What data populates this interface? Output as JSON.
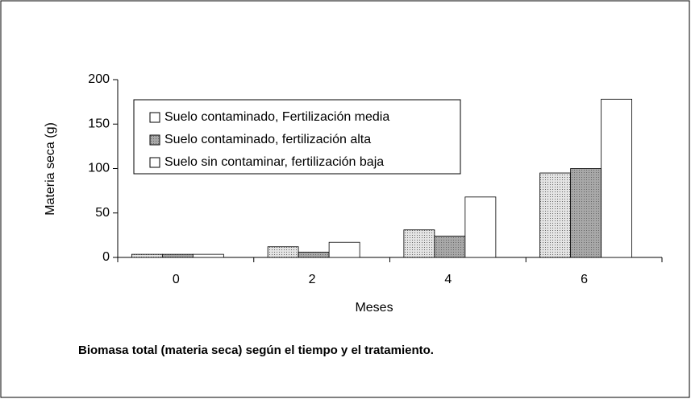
{
  "chart_data": {
    "type": "bar",
    "title": "Biomasa total (materia seca) según el tiempo y el tratamiento.",
    "x_label": "Meses",
    "y_label": "Materia seca (g)",
    "categories": [
      "0",
      "2",
      "4",
      "6"
    ],
    "series": [
      {
        "name": "Suelo contaminado, Fertilización media",
        "color": "#e4e4e4",
        "values": [
          3.5,
          12,
          31,
          95
        ]
      },
      {
        "name": "Suelo contaminado, fertilización alta",
        "color": "#a8a8a8",
        "values": [
          3.5,
          6,
          24,
          100
        ]
      },
      {
        "name": "Suelo sin contaminar, fertilización baja",
        "color": "#ffffff",
        "values": [
          3.5,
          17,
          68,
          178
        ]
      }
    ],
    "ylim": [
      0,
      200
    ],
    "yticks": [
      0,
      50,
      100,
      150,
      200
    ],
    "legend": "upper left"
  }
}
